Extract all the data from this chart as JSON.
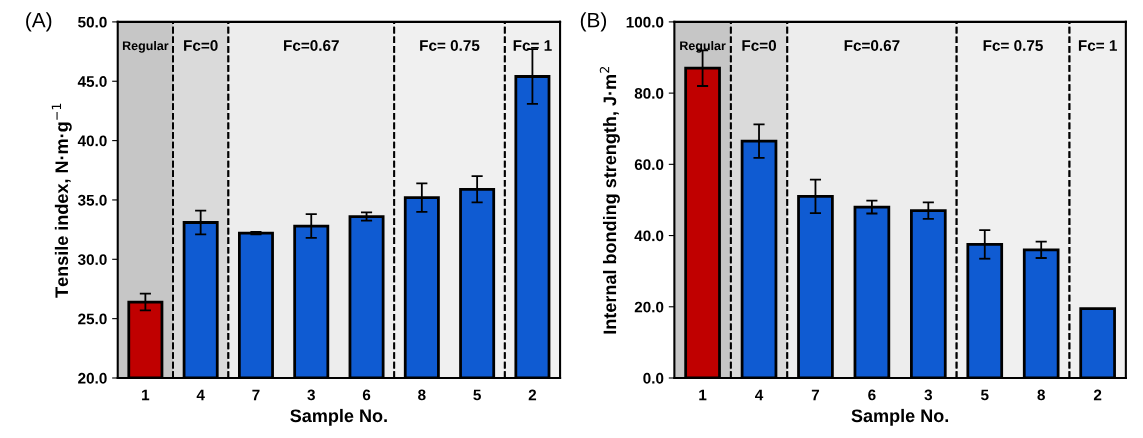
{
  "chart_data": [
    {
      "type": "bar",
      "title": "(A)",
      "xlabel": "Sample No.",
      "ylabel": "Tensile index, N·m·g$^{−1}$",
      "categories": [
        "1",
        "4",
        "7",
        "3",
        "6",
        "8",
        "5",
        "2"
      ],
      "values": [
        26.4,
        33.1,
        32.2,
        32.8,
        33.6,
        35.2,
        35.9,
        45.4
      ],
      "errors": [
        0.7,
        1.0,
        0.1,
        1.0,
        0.35,
        1.2,
        1.1,
        2.3
      ],
      "colors": [
        "#c00000",
        "#0f5bd2",
        "#0f5bd2",
        "#0f5bd2",
        "#0f5bd2",
        "#0f5bd2",
        "#0f5bd2",
        "#0f5bd2"
      ],
      "ylim": [
        20,
        50
      ],
      "yticks": [
        {
          "value": 20,
          "label": "20.0"
        },
        {
          "value": 25,
          "label": "25.0"
        },
        {
          "value": 30,
          "label": "30.0"
        },
        {
          "value": 35,
          "label": "35.0"
        },
        {
          "value": 40,
          "label": "40.0"
        },
        {
          "value": 45,
          "label": "45.0"
        },
        {
          "value": 50,
          "label": "50.0"
        }
      ],
      "bands": [
        {
          "axis": "x",
          "from": "1",
          "to": "1",
          "label": "Regular",
          "color": "#c6c6c6"
        },
        {
          "axis": "x",
          "from": "4",
          "to": "4",
          "label": "Fc=0",
          "color": "#dadada"
        },
        {
          "axis": "x",
          "from": "7",
          "to": "6",
          "label": "Fc=0.67",
          "color": "#ededed"
        },
        {
          "axis": "x",
          "from": "8",
          "to": "5",
          "label": "Fc= 0.75",
          "color": "#f0f0f0"
        },
        {
          "axis": "x",
          "from": "2",
          "to": "2",
          "label": "Fc= 1",
          "color": "#f0f0f0"
        }
      ],
      "grid": false,
      "legend": false
    },
    {
      "type": "bar",
      "title": "(B)",
      "xlabel": "Sample No.",
      "ylabel": "Internal bonding strength, J·m$^{2}$",
      "categories": [
        "1",
        "4",
        "7",
        "6",
        "3",
        "5",
        "8",
        "2"
      ],
      "values": [
        87,
        66.5,
        51,
        48,
        47,
        37.5,
        36,
        19.5
      ],
      "errors": [
        5,
        4.7,
        4.7,
        1.8,
        2.3,
        4,
        2.3,
        null
      ],
      "colors": [
        "#c00000",
        "#0f5bd2",
        "#0f5bd2",
        "#0f5bd2",
        "#0f5bd2",
        "#0f5bd2",
        "#0f5bd2",
        "#0f5bd2"
      ],
      "ylim": [
        0,
        100
      ],
      "yticks": [
        {
          "value": 0,
          "label": "0.0"
        },
        {
          "value": 20,
          "label": "20.0"
        },
        {
          "value": 40,
          "label": "40.0"
        },
        {
          "value": 60,
          "label": "60.0"
        },
        {
          "value": 80,
          "label": "80.0"
        },
        {
          "value": 100,
          "label": "100.0"
        }
      ],
      "bands": [
        {
          "axis": "x",
          "from": "1",
          "to": "1",
          "label": "Regular",
          "color": "#c6c6c6"
        },
        {
          "axis": "x",
          "from": "4",
          "to": "4",
          "label": "Fc=0",
          "color": "#dadada"
        },
        {
          "axis": "x",
          "from": "7",
          "to": "3",
          "label": "Fc=0.67",
          "color": "#ededed"
        },
        {
          "axis": "x",
          "from": "5",
          "to": "8",
          "label": "Fc= 0.75",
          "color": "#f0f0f0"
        },
        {
          "axis": "x",
          "from": "2",
          "to": "2",
          "label": "Fc= 1",
          "color": "#f0f0f0"
        }
      ],
      "grid": false,
      "legend": false
    }
  ]
}
